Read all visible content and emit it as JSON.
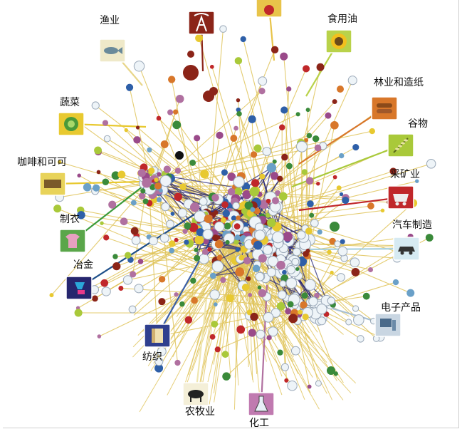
{
  "industries": [
    {
      "id": "fishery",
      "label": "渔业",
      "tile_color": "#efe9c9",
      "link_color": "#e8d68a",
      "icon": "fish-icon"
    },
    {
      "id": "oil",
      "label": "",
      "tile_color": "#8b2418",
      "link_color": "#8b2418",
      "icon": "oil-derrick-icon"
    },
    {
      "id": "top-partial",
      "label": "",
      "tile_color": "#e8c44a",
      "link_color": "#e8c44a",
      "icon": "gear-icon"
    },
    {
      "id": "edible-oil",
      "label": "食用油",
      "tile_color": "#b9d24a",
      "link_color": "#b9d24a",
      "icon": "sunflower-icon"
    },
    {
      "id": "vegetables",
      "label": "蔬菜",
      "tile_color": "#e8c930",
      "link_color": "#e8c930",
      "icon": "cabbage-icon"
    },
    {
      "id": "forestry-paper",
      "label": "林业和造纸",
      "tile_color": "#d8772a",
      "link_color": "#d8772a",
      "icon": "logs-icon"
    },
    {
      "id": "grain",
      "label": "谷物",
      "tile_color": "#a9c93a",
      "link_color": "#a9c93a",
      "icon": "wheat-icon"
    },
    {
      "id": "coffee-cocoa",
      "label": "咖啡和可可",
      "tile_color": "#e8d35a",
      "link_color": "#e8c930",
      "icon": "coffee-beans-icon"
    },
    {
      "id": "mining",
      "label": "采矿业",
      "tile_color": "#c0272a",
      "link_color": "#c0272a",
      "icon": "mine-cart-icon"
    },
    {
      "id": "apparel",
      "label": "制衣",
      "tile_color": "#5aa64a",
      "link_color": "#3a9a3a",
      "icon": "shirt-icon"
    },
    {
      "id": "auto",
      "label": "汽车制造",
      "tile_color": "#d6eaf2",
      "link_color": "#a8d0de",
      "icon": "car-icon"
    },
    {
      "id": "metallurgy",
      "label": "冶金",
      "tile_color": "#26266e",
      "link_color": "#1e4f8a",
      "icon": "ladle-icon"
    },
    {
      "id": "electronics",
      "label": "电子产品",
      "tile_color": "#c9d6e2",
      "link_color": "#a8c0d4",
      "icon": "computer-icon"
    },
    {
      "id": "textiles",
      "label": "纺织",
      "tile_color": "#2f3f8e",
      "link_color": "#3a5fa8",
      "icon": "fabric-roll-icon"
    },
    {
      "id": "livestock",
      "label": "农牧业",
      "tile_color": "#f4efd8",
      "link_color": "#efe6b0",
      "icon": "cow-icon"
    },
    {
      "id": "chemical",
      "label": "化工",
      "tile_color": "#c07ab0",
      "link_color": "#b070a0",
      "icon": "flask-icon"
    }
  ],
  "palette": {
    "spoke": "#e0c45a",
    "core_edge": "#2a2a7a",
    "node_colors": [
      "#3a8a3a",
      "#2e5fa8",
      "#d8772a",
      "#c0272a",
      "#8b2418",
      "#b070a0",
      "#a9c93a",
      "#9a4a8a",
      "#e8c930",
      "#6aa0c8"
    ],
    "hollow_stroke": "#9aa8b8",
    "hollow_fill": "#eef4f8"
  }
}
